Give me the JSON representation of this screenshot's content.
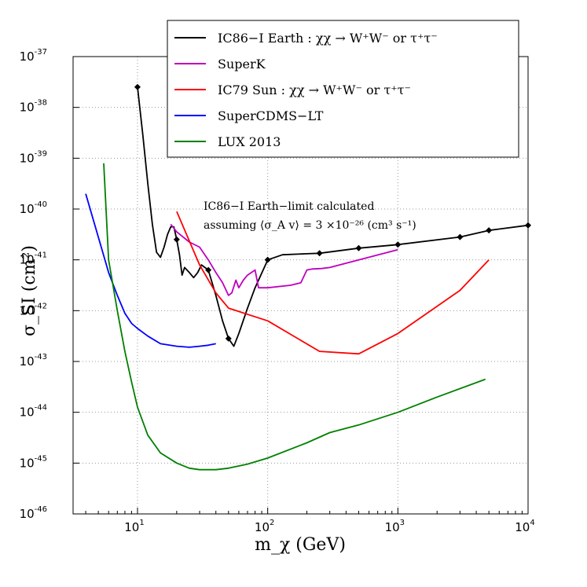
{
  "chart_data": {
    "type": "line",
    "xscale": "log",
    "yscale": "log",
    "xlim": [
      3.2,
      10000
    ],
    "ylim": [
      1e-46,
      1e-37
    ],
    "xlabel": "m_χ (GeV)",
    "ylabel": "σ_SI (cm²)",
    "grid": true,
    "legend_position": "top-right",
    "x_ticks": [
      {
        "base": "10",
        "exp": "1",
        "value": 10
      },
      {
        "base": "10",
        "exp": "2",
        "value": 100
      },
      {
        "base": "10",
        "exp": "3",
        "value": 1000
      },
      {
        "base": "10",
        "exp": "4",
        "value": 10000
      }
    ],
    "y_ticks": [
      {
        "base": "10",
        "exp": "-37",
        "value": -37
      },
      {
        "base": "10",
        "exp": "-38",
        "value": -38
      },
      {
        "base": "10",
        "exp": "-39",
        "value": -39
      },
      {
        "base": "10",
        "exp": "-40",
        "value": -40
      },
      {
        "base": "10",
        "exp": "-41",
        "value": -41
      },
      {
        "base": "10",
        "exp": "-42",
        "value": -42
      },
      {
        "base": "10",
        "exp": "-43",
        "value": -43
      },
      {
        "base": "10",
        "exp": "-44",
        "value": -44
      },
      {
        "base": "10",
        "exp": "-45",
        "value": -45
      },
      {
        "base": "10",
        "exp": "-46",
        "value": -46
      }
    ],
    "annotation": {
      "line1": "IC86−I Earth−limit calculated",
      "line2": "assuming ⟨σ_A v⟩ = 3 ×10⁻²⁶ (cm³ s⁻¹)"
    },
    "series": [
      {
        "name": "IC86−I Earth : χχ → W⁺W⁻   or τ⁺τ⁻",
        "color": "#000000",
        "markers": true,
        "points": [
          [
            10,
            -37.6
          ],
          [
            11,
            -38.55
          ],
          [
            12,
            -39.5
          ],
          [
            13,
            -40.3
          ],
          [
            14,
            -40.85
          ],
          [
            15,
            -40.95
          ],
          [
            16,
            -40.75
          ],
          [
            17,
            -40.5
          ],
          [
            18,
            -40.35
          ],
          [
            19,
            -40.35
          ],
          [
            20,
            -40.6
          ],
          [
            21,
            -40.9
          ],
          [
            22,
            -41.3
          ],
          [
            23,
            -41.15
          ],
          [
            25,
            -41.25
          ],
          [
            27,
            -41.35
          ],
          [
            29,
            -41.25
          ],
          [
            31,
            -41.1
          ],
          [
            35,
            -41.2
          ],
          [
            40,
            -41.7
          ],
          [
            45,
            -42.2
          ],
          [
            50,
            -42.55
          ],
          [
            55,
            -42.7
          ],
          [
            60,
            -42.45
          ],
          [
            70,
            -41.95
          ],
          [
            80,
            -41.55
          ],
          [
            100,
            -41.0
          ],
          [
            130,
            -40.9
          ],
          [
            200,
            -40.88
          ],
          [
            250,
            -40.87
          ],
          [
            500,
            -40.77
          ],
          [
            1000,
            -40.7
          ],
          [
            3000,
            -40.55
          ],
          [
            5000,
            -40.42
          ],
          [
            10000,
            -40.32
          ]
        ],
        "marker_x": [
          10,
          20,
          35,
          50,
          100,
          250,
          500,
          1000,
          3000,
          5000,
          10000
        ]
      },
      {
        "name": "SuperK",
        "color": "#bf00bf",
        "markers": false,
        "points": [
          [
            18,
            -40.3
          ],
          [
            20,
            -40.45
          ],
          [
            25,
            -40.65
          ],
          [
            30,
            -40.75
          ],
          [
            35,
            -41.0
          ],
          [
            40,
            -41.25
          ],
          [
            45,
            -41.45
          ],
          [
            48,
            -41.6
          ],
          [
            50,
            -41.7
          ],
          [
            53,
            -41.65
          ],
          [
            57,
            -41.4
          ],
          [
            60,
            -41.55
          ],
          [
            65,
            -41.4
          ],
          [
            70,
            -41.3
          ],
          [
            75,
            -41.25
          ],
          [
            80,
            -41.2
          ],
          [
            85,
            -41.55
          ],
          [
            100,
            -41.55
          ],
          [
            150,
            -41.5
          ],
          [
            180,
            -41.45
          ],
          [
            200,
            -41.2
          ],
          [
            220,
            -41.18
          ],
          [
            260,
            -41.17
          ],
          [
            300,
            -41.15
          ],
          [
            500,
            -41.0
          ],
          [
            1000,
            -40.8
          ]
        ]
      },
      {
        "name": "IC79 Sun : χχ → W⁺W⁻   or τ⁺τ⁻",
        "color": "#ff0000",
        "markers": false,
        "points": [
          [
            20,
            -40.05
          ],
          [
            30,
            -41.1
          ],
          [
            40,
            -41.65
          ],
          [
            50,
            -41.95
          ],
          [
            100,
            -42.2
          ],
          [
            250,
            -42.8
          ],
          [
            500,
            -42.85
          ],
          [
            1000,
            -42.45
          ],
          [
            3000,
            -41.6
          ],
          [
            5000,
            -41.0
          ]
        ]
      },
      {
        "name": "SuperCDMS−LT",
        "color": "#0000ff",
        "markers": false,
        "points": [
          [
            4,
            -39.7
          ],
          [
            5,
            -40.55
          ],
          [
            6,
            -41.25
          ],
          [
            7,
            -41.7
          ],
          [
            8,
            -42.05
          ],
          [
            9,
            -42.25
          ],
          [
            10,
            -42.35
          ],
          [
            12,
            -42.5
          ],
          [
            15,
            -42.65
          ],
          [
            20,
            -42.7
          ],
          [
            25,
            -42.72
          ],
          [
            30,
            -42.7
          ],
          [
            35,
            -42.68
          ],
          [
            40,
            -42.65
          ]
        ]
      },
      {
        "name": "LUX 2013",
        "color": "#008000",
        "markers": false,
        "points": [
          [
            5.5,
            -39.1
          ],
          [
            6,
            -41.0
          ],
          [
            7,
            -42.0
          ],
          [
            8,
            -42.8
          ],
          [
            9,
            -43.4
          ],
          [
            10,
            -43.9
          ],
          [
            12,
            -44.45
          ],
          [
            15,
            -44.8
          ],
          [
            20,
            -45.0
          ],
          [
            25,
            -45.1
          ],
          [
            30,
            -45.13
          ],
          [
            40,
            -45.13
          ],
          [
            50,
            -45.1
          ],
          [
            70,
            -45.02
          ],
          [
            100,
            -44.9
          ],
          [
            200,
            -44.6
          ],
          [
            300,
            -44.4
          ],
          [
            500,
            -44.25
          ],
          [
            1000,
            -44.0
          ],
          [
            2000,
            -43.7
          ],
          [
            4700,
            -43.35
          ]
        ]
      }
    ]
  }
}
